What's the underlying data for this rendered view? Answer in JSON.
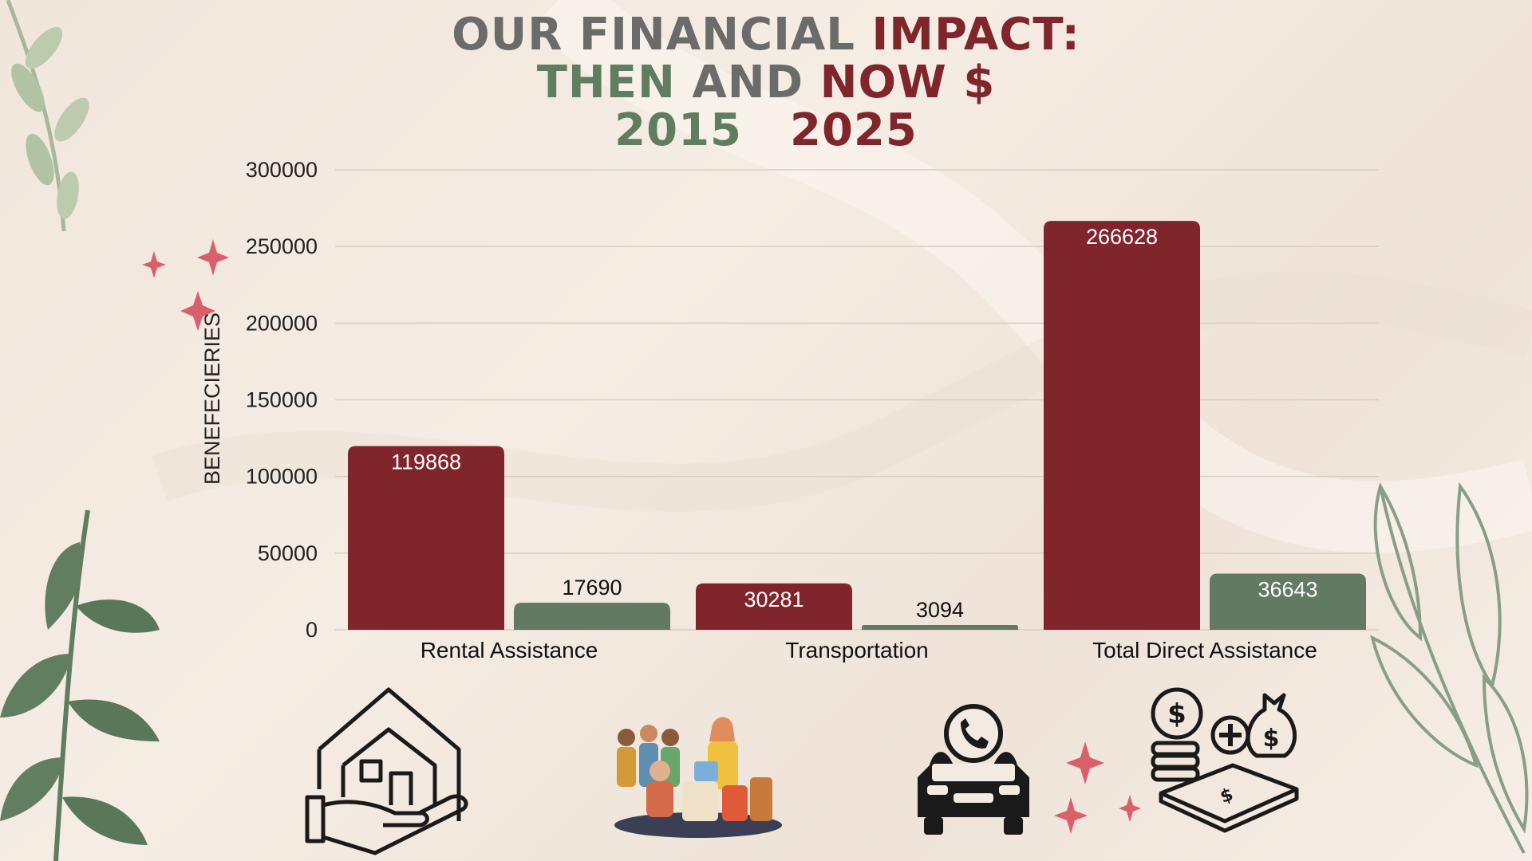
{
  "title": {
    "line1_a": "OUR FINANCIAL ",
    "line1_b": "IMPACT:",
    "line2_a": "THEN",
    "line2_b": " AND ",
    "line2_c": "NOW $",
    "year_then": "2015",
    "year_now": "2025"
  },
  "colors": {
    "series_2025": "#80252b",
    "series_2015": "#627a62",
    "gray": "#6b6b6b"
  },
  "chart_data": {
    "type": "bar",
    "categories": [
      "Rental Assistance",
      "Transportation",
      "Total Direct Assistance"
    ],
    "series": [
      {
        "values": [
          119868,
          30281,
          266628
        ],
        "color": "#80252b",
        "label_inside": true
      },
      {
        "values": [
          17690,
          3094,
          36643
        ],
        "color": "#627a62"
      }
    ],
    "ylabel": "BENEFECIERIES",
    "xlabel": "",
    "ylim": [
      0,
      300000
    ],
    "yticks": [
      0,
      50000,
      100000,
      150000,
      200000,
      250000,
      300000
    ],
    "grid": true
  },
  "icons": [
    "house-in-hand-icon",
    "food-distribution-illustration",
    "car-phone-icon",
    "money-assistance-icon",
    "sparkle-icon",
    "leaf-icon"
  ]
}
